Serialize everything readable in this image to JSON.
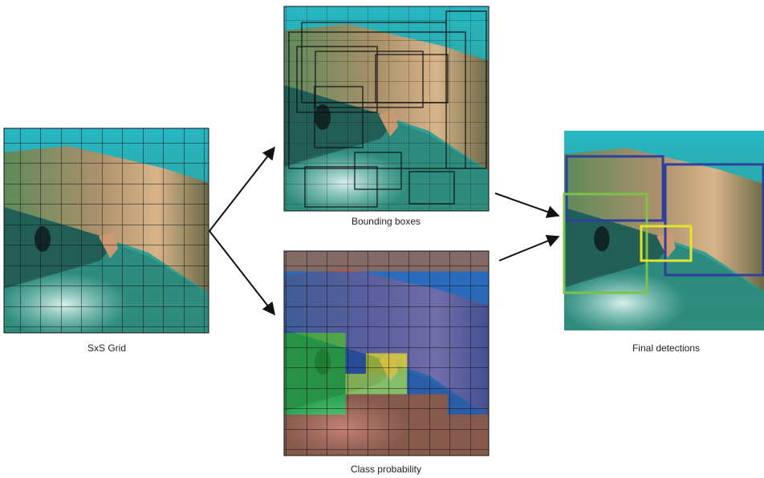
{
  "panels": [
    {
      "label": "SxS Grid"
    },
    {
      "label": "Bounding boxes"
    },
    {
      "label": "Class probability"
    },
    {
      "label": "Final detections"
    }
  ]
}
